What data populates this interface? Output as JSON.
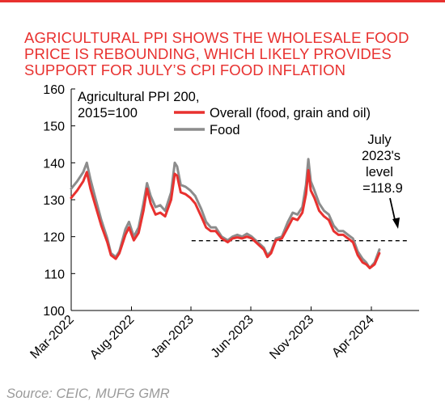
{
  "colors": {
    "accent": "#e8312f",
    "overall": "#e8312f",
    "food": "#8c8c8c",
    "reference": "#000000",
    "source_text": "#9a9a9a"
  },
  "title_lines": [
    "AGRICULTURAL PPI SHOWS THE WHOLESALE FOOD",
    "PRICE IS REBOUNDING, WHICH LIKELY PROVIDES",
    "SUPPORT FOR JULY’S CPI FOOD INFLATION"
  ],
  "source": "Source: CEIC, MUFG GMR",
  "chart_data": {
    "type": "line",
    "ylabel_lines": [
      "Agricultural PPI 200,",
      "2015=100"
    ],
    "ylim": [
      100,
      160
    ],
    "yticks": [
      "100",
      "110",
      "120",
      "130",
      "140",
      "150",
      "160"
    ],
    "xticks": [
      "Mar-2022",
      "Aug-2022",
      "Jan-2023",
      "Jun-2023",
      "Nov-2023",
      "Apr-2024"
    ],
    "grid": false,
    "legend_position": "top-center",
    "series": [
      {
        "name": "Overall (food, grain and oil)",
        "color": "#e8312f",
        "points": [
          [
            0,
            130.5
          ],
          [
            0.5,
            132.5
          ],
          [
            1.0,
            135.0
          ],
          [
            1.3,
            137.5
          ],
          [
            1.6,
            133.0
          ],
          [
            2.0,
            128.5
          ],
          [
            2.5,
            123.0
          ],
          [
            3.0,
            118.5
          ],
          [
            3.3,
            115.0
          ],
          [
            3.7,
            114.0
          ],
          [
            4.0,
            115.5
          ],
          [
            4.5,
            120.5
          ],
          [
            4.8,
            122.5
          ],
          [
            5.2,
            119.0
          ],
          [
            5.6,
            121.0
          ],
          [
            6.0,
            127.0
          ],
          [
            6.3,
            133.0
          ],
          [
            6.6,
            129.0
          ],
          [
            7.0,
            126.0
          ],
          [
            7.4,
            126.5
          ],
          [
            7.8,
            125.5
          ],
          [
            8.3,
            130.0
          ],
          [
            8.6,
            137.0
          ],
          [
            8.8,
            136.5
          ],
          [
            9.1,
            132.0
          ],
          [
            9.5,
            131.5
          ],
          [
            9.9,
            130.5
          ],
          [
            10.3,
            129.0
          ],
          [
            10.8,
            125.5
          ],
          [
            11.2,
            122.5
          ],
          [
            11.6,
            121.5
          ],
          [
            12.0,
            121.5
          ],
          [
            12.5,
            119.5
          ],
          [
            13.0,
            118.5
          ],
          [
            13.4,
            119.5
          ],
          [
            13.8,
            119.8
          ],
          [
            14.2,
            119.5
          ],
          [
            14.6,
            120.0
          ],
          [
            15.0,
            119.5
          ],
          [
            15.5,
            118.0
          ],
          [
            16.0,
            116.5
          ],
          [
            16.3,
            114.5
          ],
          [
            16.6,
            115.5
          ],
          [
            17.0,
            119.0
          ],
          [
            17.5,
            119.5
          ],
          [
            18.0,
            122.5
          ],
          [
            18.4,
            125.0
          ],
          [
            18.8,
            124.5
          ],
          [
            19.2,
            126.5
          ],
          [
            19.5,
            131.5
          ],
          [
            19.7,
            138.0
          ],
          [
            19.9,
            132.5
          ],
          [
            20.2,
            130.5
          ],
          [
            20.6,
            127.0
          ],
          [
            21.0,
            125.5
          ],
          [
            21.4,
            124.5
          ],
          [
            21.8,
            121.5
          ],
          [
            22.2,
            120.5
          ],
          [
            22.6,
            120.5
          ],
          [
            23.0,
            119.5
          ],
          [
            23.4,
            118.5
          ],
          [
            23.8,
            115.0
          ],
          [
            24.2,
            113.0
          ],
          [
            24.5,
            112.5
          ],
          [
            24.8,
            111.5
          ],
          [
            25.2,
            112.5
          ],
          [
            25.6,
            115.5
          ]
        ]
      },
      {
        "name": "Food",
        "color": "#8c8c8c",
        "points": [
          [
            0,
            133.0
          ],
          [
            0.5,
            135.0
          ],
          [
            1.0,
            137.5
          ],
          [
            1.3,
            140.0
          ],
          [
            1.6,
            135.5
          ],
          [
            2.0,
            130.5
          ],
          [
            2.5,
            124.5
          ],
          [
            3.0,
            119.5
          ],
          [
            3.3,
            115.5
          ],
          [
            3.7,
            114.5
          ],
          [
            4.0,
            116.0
          ],
          [
            4.5,
            122.0
          ],
          [
            4.8,
            124.0
          ],
          [
            5.2,
            120.0
          ],
          [
            5.6,
            122.5
          ],
          [
            6.0,
            129.0
          ],
          [
            6.3,
            134.5
          ],
          [
            6.6,
            131.0
          ],
          [
            7.0,
            128.0
          ],
          [
            7.4,
            128.5
          ],
          [
            7.8,
            127.0
          ],
          [
            8.3,
            132.0
          ],
          [
            8.6,
            140.0
          ],
          [
            8.8,
            139.0
          ],
          [
            9.1,
            134.0
          ],
          [
            9.5,
            133.5
          ],
          [
            9.9,
            132.5
          ],
          [
            10.3,
            131.0
          ],
          [
            10.8,
            127.5
          ],
          [
            11.2,
            124.0
          ],
          [
            11.6,
            122.5
          ],
          [
            12.0,
            122.5
          ],
          [
            12.5,
            120.0
          ],
          [
            13.0,
            119.0
          ],
          [
            13.4,
            120.0
          ],
          [
            13.8,
            120.5
          ],
          [
            14.2,
            120.0
          ],
          [
            14.6,
            120.8
          ],
          [
            15.0,
            120.0
          ],
          [
            15.5,
            118.5
          ],
          [
            16.0,
            117.0
          ],
          [
            16.3,
            115.0
          ],
          [
            16.6,
            116.0
          ],
          [
            17.0,
            119.5
          ],
          [
            17.5,
            120.0
          ],
          [
            18.0,
            124.0
          ],
          [
            18.4,
            126.5
          ],
          [
            18.8,
            126.0
          ],
          [
            19.2,
            128.0
          ],
          [
            19.5,
            134.0
          ],
          [
            19.7,
            141.0
          ],
          [
            19.9,
            135.0
          ],
          [
            20.2,
            132.5
          ],
          [
            20.6,
            129.0
          ],
          [
            21.0,
            127.0
          ],
          [
            21.4,
            126.0
          ],
          [
            21.8,
            123.0
          ],
          [
            22.2,
            121.5
          ],
          [
            22.6,
            121.5
          ],
          [
            23.0,
            120.5
          ],
          [
            23.4,
            119.5
          ],
          [
            23.8,
            116.0
          ],
          [
            24.2,
            114.0
          ],
          [
            24.5,
            113.0
          ],
          [
            24.8,
            111.5
          ],
          [
            25.2,
            113.0
          ],
          [
            25.6,
            116.5
          ]
        ]
      }
    ],
    "reference_line": {
      "y": 118.9,
      "style": "dashed",
      "x_start": 10.0,
      "x_end": 28.0
    },
    "annotation_lines": [
      "July",
      "2023's",
      "level",
      "=118.9"
    ]
  }
}
